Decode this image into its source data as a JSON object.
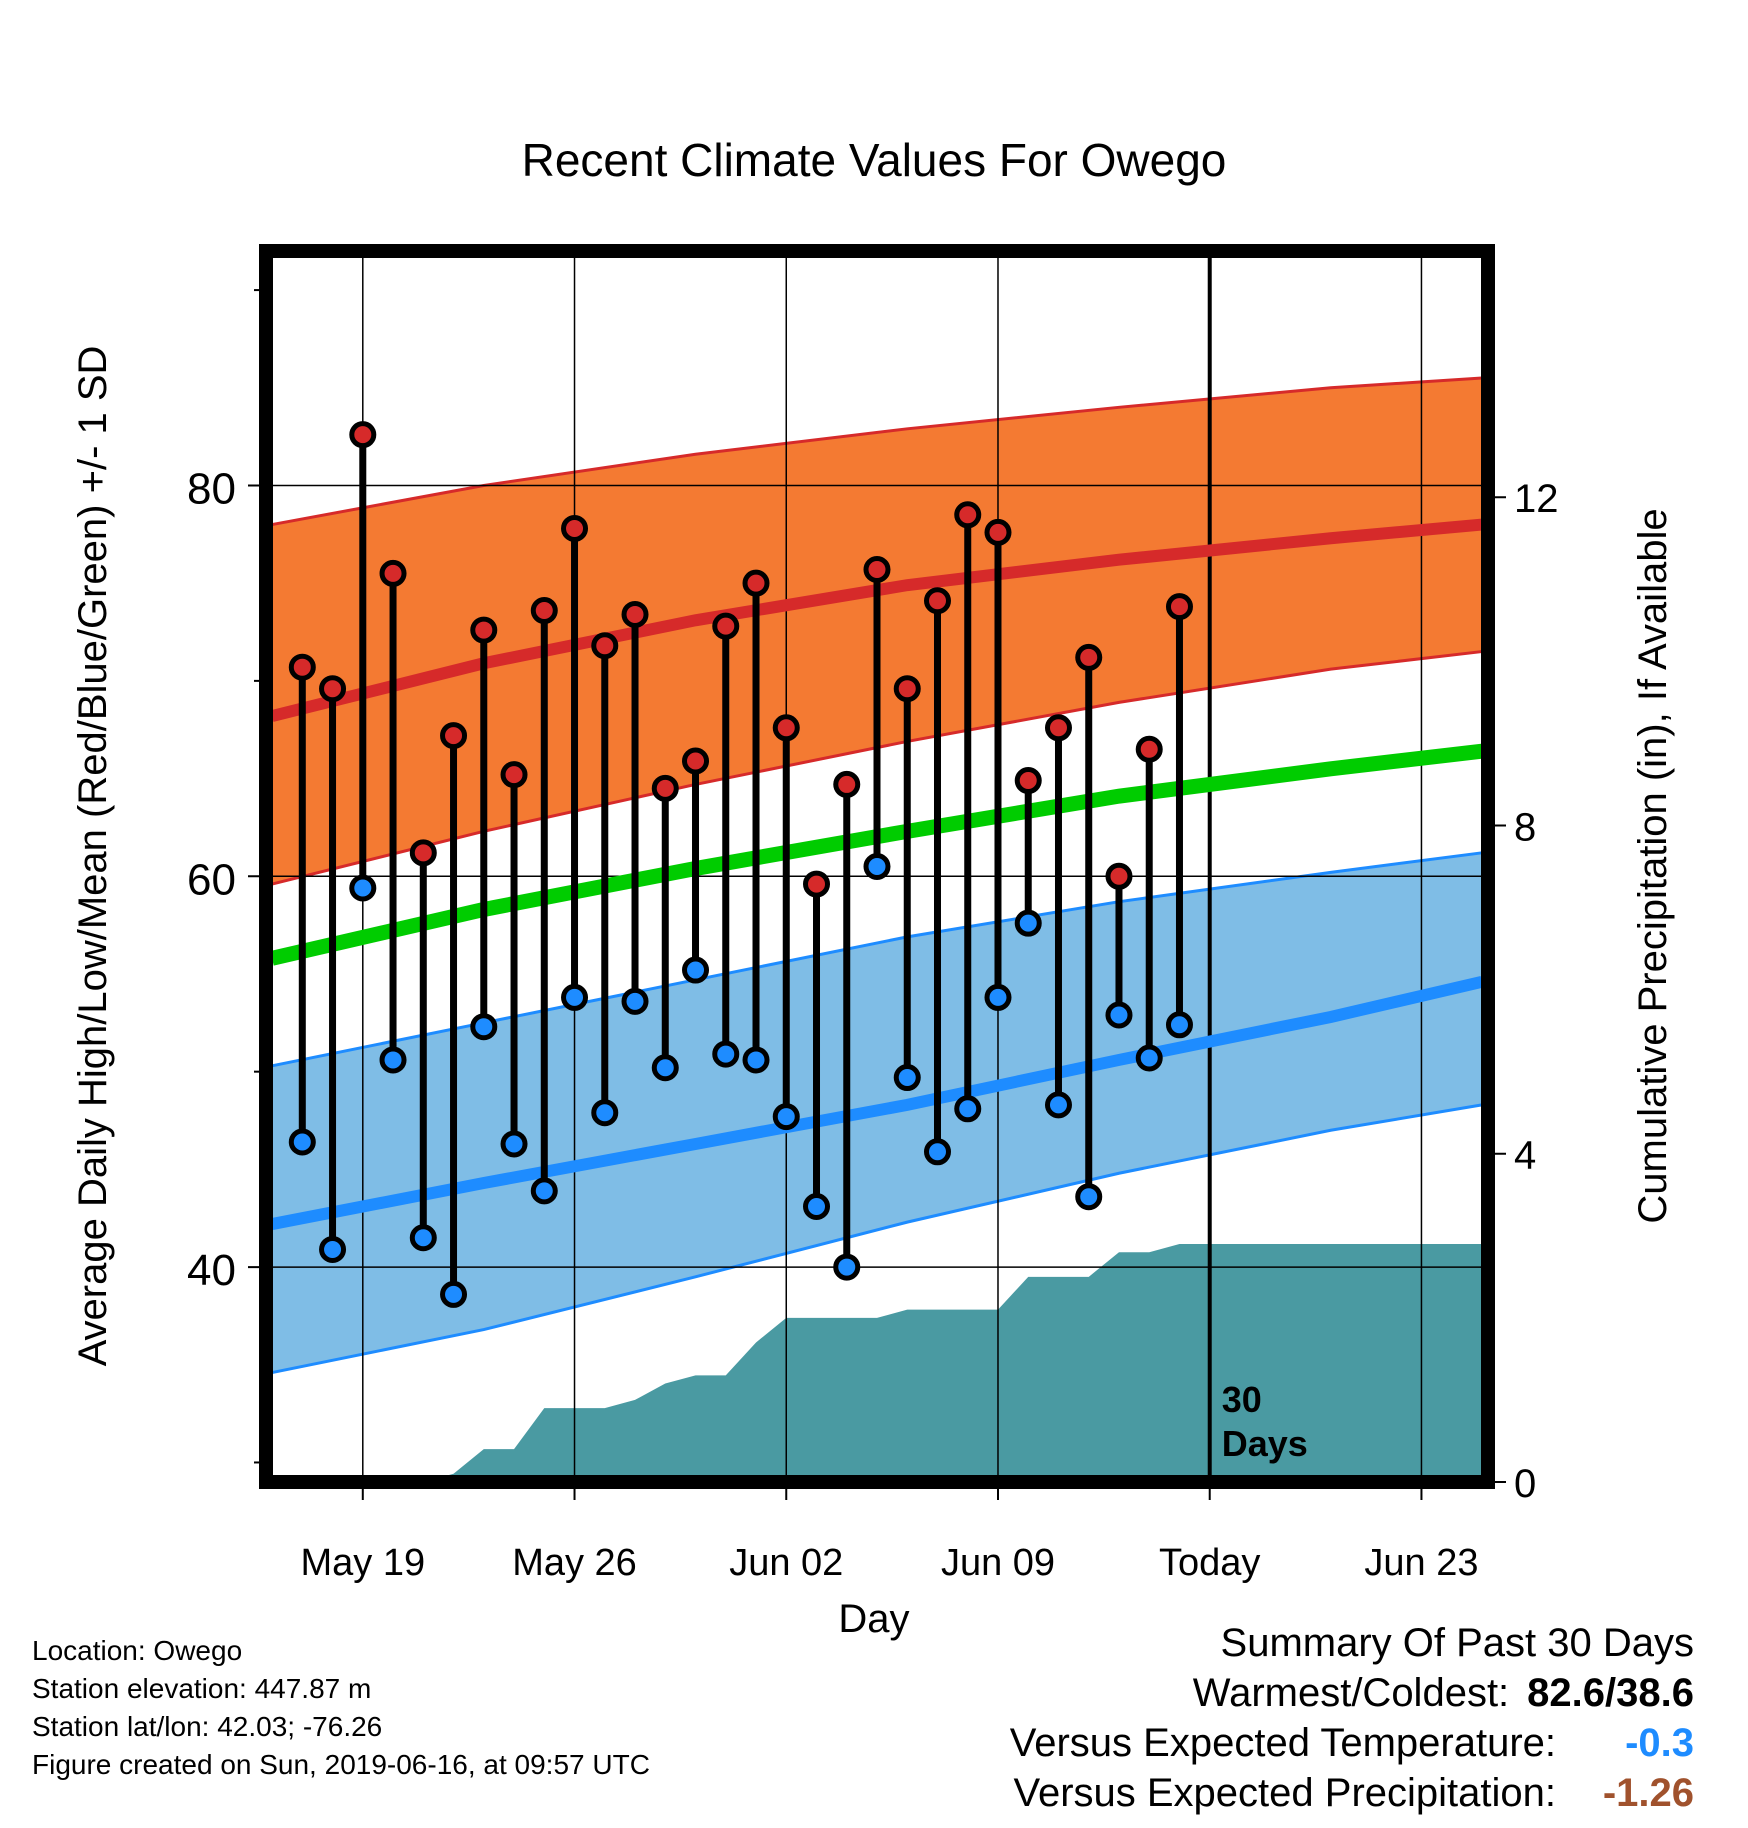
{
  "title": "Recent Climate Values For Owego",
  "chart_data": {
    "type": "line",
    "title": "Recent Climate Values For Owego",
    "xlabel": "Day",
    "ylabel": "Average Daily High/Low/Mean (Red/Blue/Green) +/- 1 SD",
    "y2label": "Cumulative Precipitation (in), If Available",
    "ylim": [
      29,
      92
    ],
    "y2lim": [
      0,
      15
    ],
    "xlim": [
      -3.2,
      37.2
    ],
    "x_tick_labels": [
      "May 19",
      "May 26",
      "Jun 02",
      "Jun 09",
      "Today",
      "Jun 23"
    ],
    "x_tick_days": [
      0,
      7,
      14,
      21,
      28,
      35
    ],
    "y_ticks": [
      40,
      60,
      80
    ],
    "y_minor_ticks": [
      30,
      50,
      70,
      90
    ],
    "y2_ticks": [
      0,
      4,
      8,
      12
    ],
    "today_day": 28,
    "today_label": "30\nDays",
    "grid": true,
    "normal_days": [
      -3,
      4,
      11,
      18,
      25,
      32,
      37
    ],
    "normal_high_mean": [
      68.2,
      70.9,
      73.1,
      74.9,
      76.2,
      77.3,
      78.0
    ],
    "normal_high_upper": [
      78.0,
      80.0,
      81.6,
      82.9,
      84.0,
      85.0,
      85.5
    ],
    "normal_high_lower": [
      59.6,
      62.3,
      64.7,
      66.9,
      68.9,
      70.6,
      71.5
    ],
    "normal_mean": [
      55.8,
      58.3,
      60.4,
      62.3,
      64.1,
      65.5,
      66.4
    ],
    "normal_low_mean": [
      42.2,
      44.3,
      46.3,
      48.3,
      50.6,
      52.8,
      54.6
    ],
    "normal_low_upper": [
      50.3,
      52.5,
      54.7,
      56.9,
      58.7,
      60.2,
      61.2
    ],
    "normal_low_lower": [
      34.6,
      36.8,
      39.5,
      42.3,
      44.8,
      47.0,
      48.3
    ],
    "daily_days": [
      -2,
      -1,
      0,
      1,
      2,
      3,
      4,
      5,
      6,
      7,
      8,
      9,
      10,
      11,
      12,
      13,
      14,
      15,
      16,
      17,
      18,
      19,
      20,
      21,
      22,
      23,
      24,
      25,
      26,
      27
    ],
    "daily_high": [
      70.7,
      69.6,
      82.6,
      75.5,
      61.2,
      67.2,
      72.6,
      65.2,
      73.6,
      77.8,
      71.8,
      73.4,
      64.5,
      65.9,
      72.8,
      75.0,
      67.6,
      59.6,
      64.7,
      75.7,
      69.6,
      74.1,
      78.5,
      77.6,
      64.9,
      67.6,
      71.2,
      60.0,
      66.5,
      73.8
    ],
    "daily_low": [
      46.4,
      40.9,
      59.4,
      50.6,
      41.5,
      38.6,
      52.3,
      46.3,
      43.9,
      53.8,
      47.9,
      53.6,
      50.2,
      55.2,
      50.9,
      50.6,
      47.7,
      43.1,
      40.0,
      60.5,
      49.7,
      45.9,
      48.1,
      53.8,
      57.6,
      48.3,
      43.6,
      52.9,
      50.7,
      52.4
    ],
    "precip_days": [
      -3,
      2,
      3,
      4,
      5,
      6,
      7,
      8,
      9,
      10,
      11,
      12,
      13,
      14,
      15,
      16,
      17,
      18,
      19,
      20,
      21,
      22,
      23,
      24,
      25,
      26,
      27,
      28,
      37
    ],
    "precip_cum": [
      0,
      0,
      0.1,
      0.4,
      0.4,
      0.9,
      0.9,
      0.9,
      1.0,
      1.2,
      1.3,
      1.3,
      1.7,
      2.0,
      2.0,
      2.0,
      2.0,
      2.1,
      2.1,
      2.1,
      2.1,
      2.5,
      2.5,
      2.5,
      2.8,
      2.8,
      2.9,
      2.9,
      2.9
    ],
    "colors": {
      "high_band": "#f47a32",
      "high_line": "#d62a2a",
      "low_band": "#7fbde6",
      "low_line": "#1e8cff",
      "mean_line": "#00cc00",
      "precip": "#4a9aa2",
      "high_marker": "#d62a2a",
      "low_marker": "#1e8cff"
    }
  },
  "footer": {
    "location": "Location: Owego",
    "elevation": "Station elevation: 447.87 m",
    "latlon": "Station lat/lon: 42.03; -76.26",
    "created": "Figure created on Sun, 2019-06-16, at 09:57 UTC"
  },
  "summary": {
    "heading": "Summary Of Past 30 Days",
    "warmest_label": "Warmest/Coldest:",
    "warmest_value": "82.6/38.6",
    "temp_label": "Versus Expected Temperature:",
    "temp_value": "-0.3",
    "temp_color": "#1e8cff",
    "precip_label": "Versus Expected Precipitation:",
    "precip_value": "-1.26",
    "precip_color": "#a0522d"
  }
}
